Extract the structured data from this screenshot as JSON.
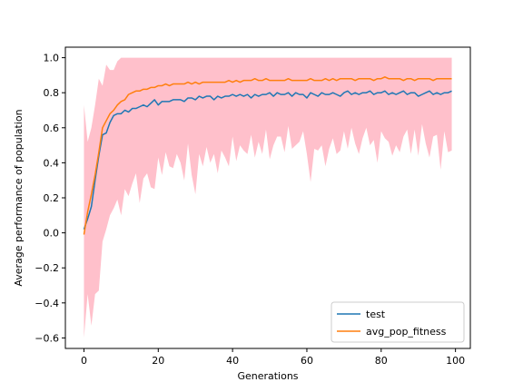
{
  "chart_data": {
    "type": "line",
    "title": "",
    "xlabel": "Generations",
    "ylabel": "Average performance of population",
    "xlim": [
      -5,
      104
    ],
    "ylim": [
      -0.66,
      1.06
    ],
    "xticks": [
      0,
      20,
      40,
      60,
      80,
      100
    ],
    "xtick_labels": [
      "0",
      "20",
      "40",
      "60",
      "80",
      "100"
    ],
    "yticks": [
      -0.6,
      -0.4,
      -0.2,
      0.0,
      0.2,
      0.4,
      0.6,
      0.8,
      1.0
    ],
    "ytick_labels": [
      "−0.6",
      "−0.4",
      "−0.2",
      "0.0",
      "0.2",
      "0.4",
      "0.6",
      "0.8",
      "1.0"
    ],
    "grid": false,
    "legend_position": "lower-right",
    "band": {
      "x": [
        0,
        1,
        2,
        3,
        4,
        5,
        6,
        7,
        8,
        9,
        10,
        11,
        12,
        13,
        14,
        15,
        16,
        17,
        18,
        19,
        20,
        21,
        22,
        23,
        24,
        25,
        26,
        27,
        28,
        29,
        30,
        31,
        32,
        33,
        34,
        35,
        36,
        37,
        38,
        39,
        40,
        41,
        42,
        43,
        44,
        45,
        46,
        47,
        48,
        49,
        50,
        51,
        52,
        53,
        54,
        55,
        56,
        57,
        58,
        59,
        60,
        61,
        62,
        63,
        64,
        65,
        66,
        67,
        68,
        69,
        70,
        71,
        72,
        73,
        74,
        75,
        76,
        77,
        78,
        79,
        80,
        81,
        82,
        83,
        84,
        85,
        86,
        87,
        88,
        89,
        90,
        91,
        92,
        93,
        94,
        95,
        96,
        97,
        98,
        99
      ],
      "upper": [
        0.73,
        0.52,
        0.6,
        0.73,
        0.88,
        0.84,
        0.96,
        0.93,
        0.93,
        0.98,
        1.0,
        1.0,
        1.0,
        1.0,
        1.0,
        1.0,
        1.0,
        1.0,
        1.0,
        1.0,
        1.0,
        1.0,
        1.0,
        1.0,
        1.0,
        1.0,
        1.0,
        1.0,
        1.0,
        1.0,
        1.0,
        1.0,
        1.0,
        1.0,
        1.0,
        1.0,
        1.0,
        1.0,
        1.0,
        1.0,
        1.0,
        1.0,
        1.0,
        1.0,
        1.0,
        1.0,
        1.0,
        1.0,
        1.0,
        1.0,
        1.0,
        1.0,
        1.0,
        1.0,
        1.0,
        1.0,
        1.0,
        1.0,
        1.0,
        1.0,
        1.0,
        1.0,
        1.0,
        1.0,
        1.0,
        1.0,
        1.0,
        1.0,
        1.0,
        1.0,
        1.0,
        1.0,
        1.0,
        1.0,
        1.0,
        1.0,
        1.0,
        1.0,
        1.0,
        1.0,
        1.0,
        1.0,
        1.0,
        1.0,
        1.0,
        1.0,
        1.0,
        1.0,
        1.0,
        1.0,
        1.0,
        1.0,
        1.0,
        1.0,
        1.0,
        1.0,
        1.0,
        1.0,
        1.0,
        1.0
      ],
      "lower": [
        -0.6,
        -0.35,
        -0.53,
        -0.35,
        -0.33,
        -0.05,
        0.02,
        0.1,
        0.14,
        0.19,
        0.1,
        0.25,
        0.21,
        0.28,
        0.34,
        0.17,
        0.31,
        0.34,
        0.26,
        0.25,
        0.43,
        0.33,
        0.46,
        0.38,
        0.37,
        0.45,
        0.4,
        0.3,
        0.51,
        0.33,
        0.22,
        0.45,
        0.38,
        0.49,
        0.4,
        0.45,
        0.34,
        0.47,
        0.43,
        0.38,
        0.55,
        0.41,
        0.5,
        0.47,
        0.45,
        0.56,
        0.43,
        0.52,
        0.45,
        0.59,
        0.42,
        0.5,
        0.55,
        0.55,
        0.46,
        0.61,
        0.48,
        0.5,
        0.52,
        0.58,
        0.45,
        0.29,
        0.48,
        0.47,
        0.5,
        0.38,
        0.48,
        0.54,
        0.45,
        0.47,
        0.58,
        0.48,
        0.6,
        0.51,
        0.45,
        0.54,
        0.6,
        0.5,
        0.53,
        0.4,
        0.58,
        0.54,
        0.52,
        0.44,
        0.5,
        0.46,
        0.55,
        0.59,
        0.45,
        0.59,
        0.44,
        0.62,
        0.51,
        0.43,
        0.55,
        0.56,
        0.36,
        0.58,
        0.46,
        0.47
      ]
    },
    "series": [
      {
        "name": "test",
        "color": "#1f77b4",
        "x": [
          0,
          1,
          2,
          3,
          4,
          5,
          6,
          7,
          8,
          9,
          10,
          11,
          12,
          13,
          14,
          15,
          16,
          17,
          18,
          19,
          20,
          21,
          22,
          23,
          24,
          25,
          26,
          27,
          28,
          29,
          30,
          31,
          32,
          33,
          34,
          35,
          36,
          37,
          38,
          39,
          40,
          41,
          42,
          43,
          44,
          45,
          46,
          47,
          48,
          49,
          50,
          51,
          52,
          53,
          54,
          55,
          56,
          57,
          58,
          59,
          60,
          61,
          62,
          63,
          64,
          65,
          66,
          67,
          68,
          69,
          70,
          71,
          72,
          73,
          74,
          75,
          76,
          77,
          78,
          79,
          80,
          81,
          82,
          83,
          84,
          85,
          86,
          87,
          88,
          89,
          90,
          91,
          92,
          93,
          94,
          95,
          96,
          97,
          98,
          99
        ],
        "values": [
          0.02,
          0.08,
          0.15,
          0.3,
          0.44,
          0.56,
          0.57,
          0.63,
          0.67,
          0.68,
          0.68,
          0.7,
          0.69,
          0.71,
          0.71,
          0.72,
          0.73,
          0.72,
          0.74,
          0.76,
          0.73,
          0.75,
          0.75,
          0.75,
          0.76,
          0.76,
          0.76,
          0.75,
          0.77,
          0.77,
          0.76,
          0.78,
          0.77,
          0.78,
          0.78,
          0.76,
          0.78,
          0.77,
          0.78,
          0.78,
          0.79,
          0.78,
          0.79,
          0.78,
          0.79,
          0.77,
          0.79,
          0.78,
          0.79,
          0.79,
          0.8,
          0.78,
          0.8,
          0.79,
          0.79,
          0.8,
          0.78,
          0.8,
          0.79,
          0.79,
          0.77,
          0.8,
          0.79,
          0.78,
          0.8,
          0.79,
          0.79,
          0.8,
          0.79,
          0.78,
          0.8,
          0.81,
          0.79,
          0.8,
          0.79,
          0.8,
          0.8,
          0.81,
          0.79,
          0.8,
          0.8,
          0.81,
          0.79,
          0.8,
          0.79,
          0.8,
          0.81,
          0.79,
          0.8,
          0.8,
          0.78,
          0.79,
          0.8,
          0.81,
          0.79,
          0.8,
          0.79,
          0.8,
          0.8,
          0.81
        ]
      },
      {
        "name": "avg_pop_fitness",
        "color": "#ff7f0e",
        "x": [
          0,
          1,
          2,
          3,
          4,
          5,
          6,
          7,
          8,
          9,
          10,
          11,
          12,
          13,
          14,
          15,
          16,
          17,
          18,
          19,
          20,
          21,
          22,
          23,
          24,
          25,
          26,
          27,
          28,
          29,
          30,
          31,
          32,
          33,
          34,
          35,
          36,
          37,
          38,
          39,
          40,
          41,
          42,
          43,
          44,
          45,
          46,
          47,
          48,
          49,
          50,
          51,
          52,
          53,
          54,
          55,
          56,
          57,
          58,
          59,
          60,
          61,
          62,
          63,
          64,
          65,
          66,
          67,
          68,
          69,
          70,
          71,
          72,
          73,
          74,
          75,
          76,
          77,
          78,
          79,
          80,
          81,
          82,
          83,
          84,
          85,
          86,
          87,
          88,
          89,
          90,
          91,
          92,
          93,
          94,
          95,
          96,
          97,
          98,
          99
        ],
        "values": [
          -0.01,
          0.12,
          0.22,
          0.33,
          0.46,
          0.6,
          0.64,
          0.68,
          0.7,
          0.73,
          0.75,
          0.76,
          0.79,
          0.8,
          0.81,
          0.81,
          0.82,
          0.82,
          0.83,
          0.83,
          0.84,
          0.84,
          0.85,
          0.84,
          0.85,
          0.85,
          0.85,
          0.85,
          0.86,
          0.85,
          0.86,
          0.85,
          0.86,
          0.86,
          0.86,
          0.86,
          0.86,
          0.86,
          0.86,
          0.87,
          0.86,
          0.87,
          0.86,
          0.87,
          0.87,
          0.87,
          0.88,
          0.87,
          0.87,
          0.88,
          0.87,
          0.87,
          0.87,
          0.87,
          0.87,
          0.88,
          0.87,
          0.87,
          0.87,
          0.87,
          0.87,
          0.88,
          0.87,
          0.87,
          0.87,
          0.88,
          0.87,
          0.88,
          0.87,
          0.88,
          0.88,
          0.88,
          0.88,
          0.87,
          0.88,
          0.88,
          0.88,
          0.88,
          0.87,
          0.88,
          0.88,
          0.89,
          0.88,
          0.88,
          0.88,
          0.88,
          0.87,
          0.88,
          0.88,
          0.87,
          0.88,
          0.88,
          0.88,
          0.88,
          0.87,
          0.88,
          0.88,
          0.88,
          0.88,
          0.88
        ]
      }
    ],
    "band_color": "#ffc0cb"
  }
}
